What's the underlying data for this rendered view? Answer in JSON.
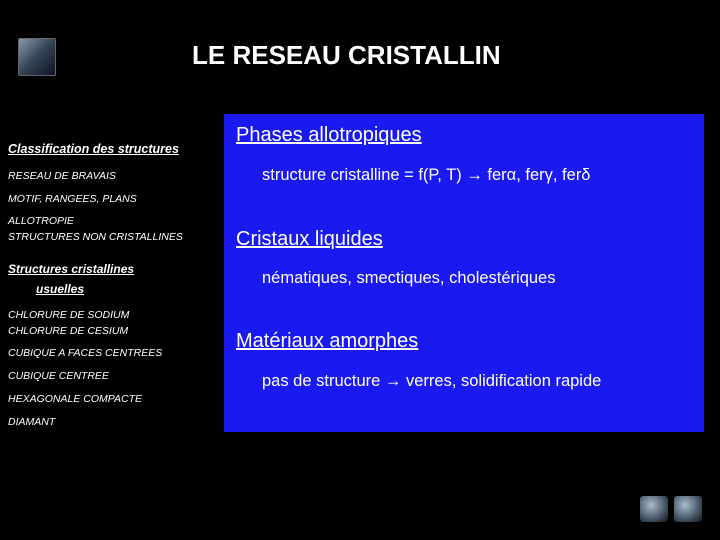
{
  "title": "LE RESEAU CRISTALLIN",
  "nav": {
    "heading1": "Classification des structures",
    "items1": [
      "RESEAU DE BRAVAIS",
      "MOTIF, RANGEES, PLANS",
      "ALLOTROPIE",
      "STRUCTURES NON CRISTALLINES"
    ],
    "heading2a": "Structures cristallines",
    "heading2b": "usuelles",
    "items2": [
      "CHLORURE DE SODIUM",
      "CHLORURE DE CESIUM",
      "CUBIQUE A FACES CENTREES",
      "CUBIQUE CENTREE",
      "HEXAGONALE COMPACTE",
      "DIAMANT"
    ]
  },
  "content": {
    "s1": {
      "heading": "Phases allotropiques",
      "body": "structure cristalline = f(P, T) → ferα, ferγ, ferδ"
    },
    "s2": {
      "heading": "Cristaux liquides",
      "body": "nématiques, smectiques, cholestériques"
    },
    "s3": {
      "heading": "Matériaux amorphes",
      "body": "pas de structure → verres, solidification rapide"
    }
  },
  "colors": {
    "background": "#000000",
    "panel": "#1a1af0",
    "text": "#ffffff"
  }
}
